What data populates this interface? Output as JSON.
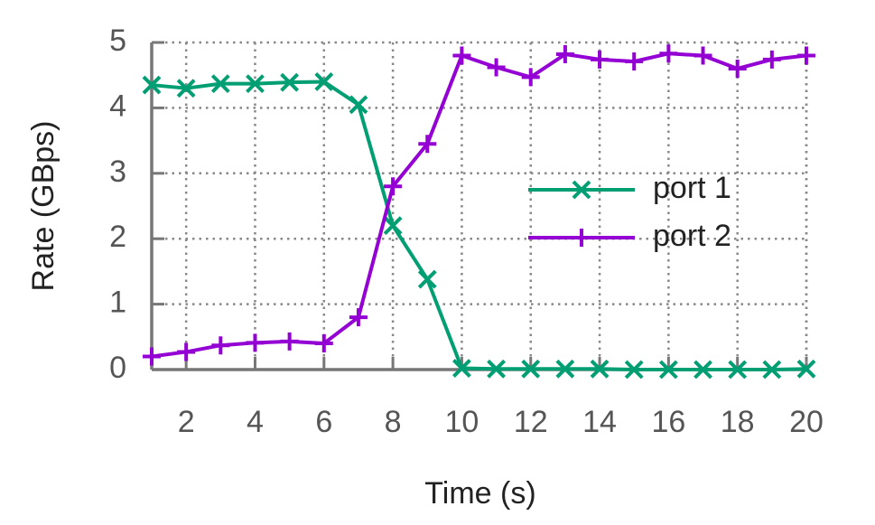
{
  "chart_data": {
    "type": "line",
    "x_label": "Time (s)",
    "y_label": "Rate (GBps)",
    "x": [
      1,
      2,
      3,
      4,
      5,
      6,
      7,
      8,
      9,
      10,
      11,
      12,
      13,
      14,
      15,
      16,
      17,
      18,
      19,
      20
    ],
    "series": [
      {
        "name": "port 1",
        "color": "#009e73",
        "marker": "x",
        "values": [
          4.35,
          4.3,
          4.37,
          4.37,
          4.39,
          4.4,
          4.05,
          2.2,
          1.38,
          0.02,
          0.01,
          0.01,
          0.01,
          0.01,
          0,
          0,
          0,
          0,
          0,
          0.01
        ]
      },
      {
        "name": "port 2",
        "color": "#9400d3",
        "marker": "+",
        "values": [
          0.2,
          0.27,
          0.37,
          0.41,
          0.43,
          0.4,
          0.8,
          2.8,
          3.45,
          4.8,
          4.62,
          4.47,
          4.82,
          4.74,
          4.71,
          4.83,
          4.8,
          4.6,
          4.74,
          4.8
        ]
      }
    ],
    "xlim": [
      1,
      20
    ],
    "xticks": [
      2,
      4,
      6,
      8,
      10,
      12,
      14,
      16,
      18,
      20
    ],
    "ylim": [
      0,
      5
    ],
    "yticks": [
      0,
      1,
      2,
      3,
      4,
      5
    ],
    "grid": true,
    "legend_position": "center right"
  }
}
